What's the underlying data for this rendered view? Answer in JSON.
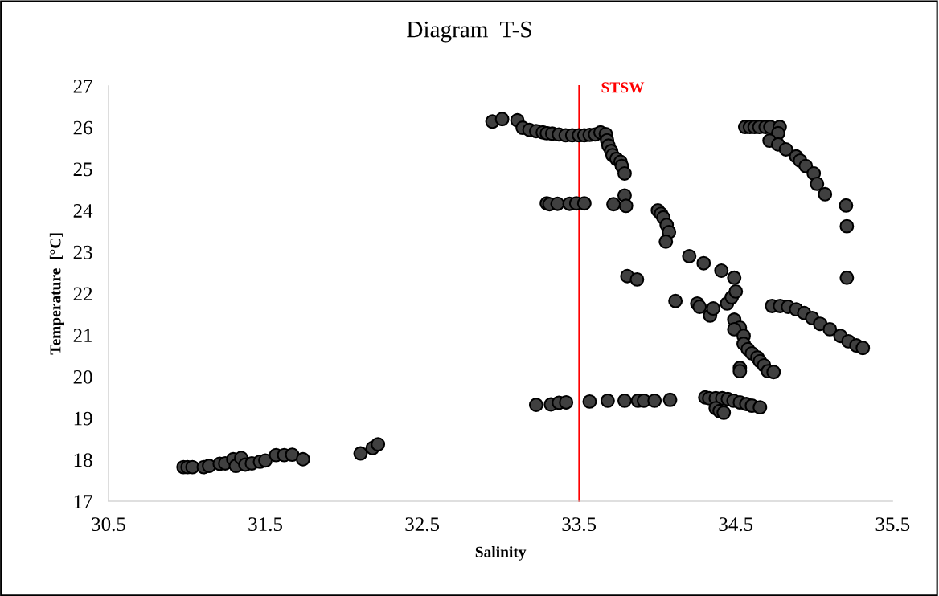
{
  "chart_data": {
    "type": "scatter",
    "title": "Diagram  T-S",
    "xlabel": "Salinity",
    "ylabel": "Temperature  [°C]",
    "xlim": [
      30.5,
      35.5
    ],
    "xticks": [
      30.5,
      31.5,
      32.5,
      33.5,
      34.5,
      35.5
    ],
    "ylim": [
      17,
      27
    ],
    "yticks": [
      17,
      18,
      19,
      20,
      21,
      22,
      23,
      24,
      25,
      26,
      27
    ],
    "grid": false,
    "legend": false,
    "marker": "circle",
    "ref_lines": [
      {
        "axis": "x",
        "value": 33.5,
        "label": "STSW",
        "color": "#ff0000"
      }
    ],
    "series": [
      {
        "color": "#404040",
        "x": [
          30.978,
          31.004,
          31.035,
          31.107,
          31.141,
          31.209,
          31.244,
          31.295,
          31.312,
          31.346,
          31.372,
          31.414,
          31.466,
          31.5,
          31.568,
          31.62,
          31.671,
          31.74,
          32.107,
          32.184,
          32.218,
          32.948,
          33.01,
          33.107,
          33.141,
          33.184,
          33.227,
          33.269,
          33.295,
          33.329,
          33.372,
          33.415,
          33.457,
          33.5,
          33.534,
          33.568,
          33.603,
          33.637,
          33.671,
          33.679,
          33.688,
          33.705,
          33.714,
          33.739,
          33.765,
          33.773,
          33.791,
          33.295,
          33.312,
          33.363,
          33.44,
          33.483,
          33.534,
          33.72,
          33.791,
          33.8,
          34.56,
          34.59,
          34.62,
          34.65,
          34.69,
          34.72,
          34.78,
          34.77,
          34.715,
          34.77,
          34.82,
          34.885,
          34.91,
          34.946,
          34.997,
          35.018,
          35.069,
          35.203,
          35.208,
          35.208,
          34.003,
          34.023,
          34.038,
          34.059,
          34.074,
          34.054,
          34.203,
          34.295,
          34.408,
          34.49,
          33.808,
          33.87,
          34.115,
          34.254,
          34.269,
          34.336,
          34.356,
          34.444,
          34.474,
          34.5,
          34.49,
          34.526,
          34.49,
          34.55,
          34.55,
          34.577,
          34.603,
          34.638,
          34.654,
          34.68,
          34.705,
          34.741,
          34.526,
          34.526,
          34.731,
          34.782,
          34.833,
          34.885,
          34.936,
          34.987,
          35.038,
          35.1,
          35.167,
          35.218,
          35.269,
          35.31,
          33.227,
          33.321,
          33.372,
          33.418,
          33.568,
          33.683,
          33.791,
          33.876,
          33.914,
          33.982,
          34.081,
          34.305,
          34.33,
          34.372,
          34.413,
          34.449,
          34.485,
          34.526,
          34.567,
          34.603,
          34.654,
          34.372,
          34.397,
          34.423
        ],
        "values": [
          17.82,
          17.82,
          17.82,
          17.82,
          17.85,
          17.9,
          17.91,
          18.01,
          17.85,
          18.04,
          17.88,
          17.91,
          17.95,
          17.98,
          18.11,
          18.11,
          18.12,
          18.01,
          18.15,
          18.28,
          18.37,
          26.14,
          26.2,
          26.17,
          25.99,
          25.94,
          25.91,
          25.88,
          25.86,
          25.85,
          25.83,
          25.81,
          25.81,
          25.81,
          25.81,
          25.82,
          25.83,
          25.88,
          25.84,
          25.69,
          25.56,
          25.43,
          25.33,
          25.24,
          25.17,
          25.07,
          24.89,
          24.17,
          24.15,
          24.16,
          24.16,
          24.17,
          24.17,
          24.15,
          24.36,
          24.11,
          26.01,
          26.01,
          26.01,
          26.01,
          26.01,
          26.01,
          26.01,
          25.86,
          25.68,
          25.59,
          25.47,
          25.3,
          25.2,
          25.07,
          24.89,
          24.64,
          24.39,
          24.12,
          23.62,
          22.38,
          24.0,
          23.92,
          23.83,
          23.65,
          23.48,
          23.25,
          22.9,
          22.73,
          22.55,
          22.38,
          22.42,
          22.34,
          21.82,
          21.76,
          21.68,
          21.47,
          21.64,
          21.76,
          21.91,
          22.05,
          21.37,
          21.18,
          21.14,
          20.98,
          20.79,
          20.66,
          20.56,
          20.46,
          20.37,
          20.27,
          20.13,
          20.11,
          20.21,
          20.13,
          21.7,
          21.7,
          21.68,
          21.62,
          21.53,
          21.41,
          21.27,
          21.14,
          20.98,
          20.85,
          20.75,
          20.69,
          19.32,
          19.33,
          19.37,
          19.38,
          19.4,
          19.42,
          19.42,
          19.42,
          19.42,
          19.42,
          19.44,
          19.5,
          19.48,
          19.48,
          19.48,
          19.46,
          19.42,
          19.38,
          19.34,
          19.3,
          19.26,
          19.24,
          19.17,
          19.13
        ]
      }
    ]
  }
}
